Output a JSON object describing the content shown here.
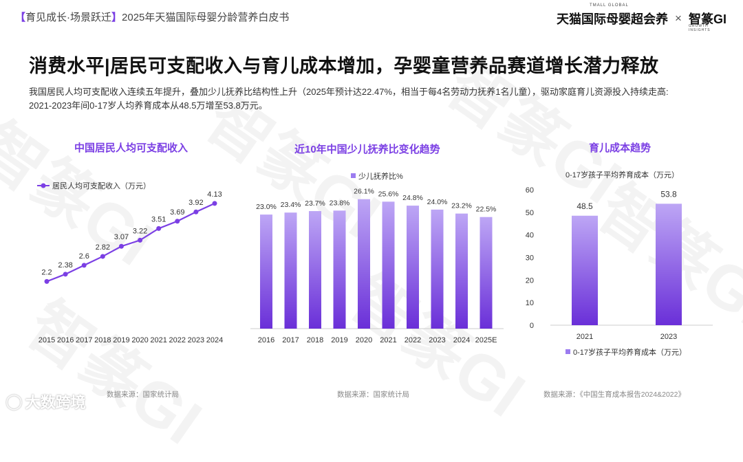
{
  "header": {
    "section_tag": "育见成长·场景跃迁",
    "report_title": "2025年天猫国际母婴分龄营养白皮书",
    "brand_tmall": "天猫国际母婴超会养",
    "brand_tmall_super": "TMALL GLOBAL",
    "brand_times": "×",
    "brand_gi": "智篆GI",
    "brand_gi_sub": "GROWTH INSIGHTS"
  },
  "headline": "消费水平|居民可支配收入与育儿成本增加，孕婴童营养品赛道增长潜力释放",
  "description": {
    "line1": "我国居民人均可支配收入连续五年提升，叠加少儿抚养比结构性上升（2025年预计达22.47%，相当于每4名劳动力抚养1名儿童），驱动家庭育儿资源投入持续走高:",
    "line2": "2021-2023年间0-17岁人均养育成本从48.5万增至53.8万元。"
  },
  "watermark": "智篆GI",
  "footer_logo": "大数跨境",
  "colors": {
    "accent": "#7b3fe4",
    "bar_top": "#b9a0f5",
    "bar_bottom": "#6a2fd8"
  },
  "chart_data": [
    {
      "type": "line",
      "title": "中国居民人均可支配收入",
      "legend": "居民人均可支配收入（万元）",
      "x": [
        "2015",
        "2016",
        "2017",
        "2018",
        "2019",
        "2020",
        "2021",
        "2022",
        "2023",
        "2024"
      ],
      "series": [
        {
          "name": "居民人均可支配收入（万元）",
          "values": [
            2.2,
            2.38,
            2.6,
            2.82,
            3.07,
            3.22,
            3.51,
            3.69,
            3.92,
            4.13
          ]
        }
      ],
      "labels": [
        "2.2",
        "2.38",
        "2.6",
        "2.82",
        "3.07",
        "3.22",
        "3.51",
        "3.69",
        "3.92",
        "4.13"
      ],
      "ylim": [
        1.0,
        4.4
      ],
      "source": "数据来源：国家统计局"
    },
    {
      "type": "bar",
      "title": "近10年中国少儿抚养比变化趋势",
      "legend": "少儿抚养比%",
      "categories": [
        "2016",
        "2017",
        "2018",
        "2019",
        "2020",
        "2021",
        "2022",
        "2023",
        "2024",
        "2025E"
      ],
      "values": [
        23.0,
        23.4,
        23.7,
        23.8,
        26.1,
        25.6,
        24.8,
        24.0,
        23.2,
        22.5
      ],
      "labels": [
        "23.0%",
        "23.4%",
        "23.7%",
        "23.8%",
        "26.1%",
        "25.6%",
        "24.8%",
        "24.0%",
        "23.2%",
        "22.5%"
      ],
      "ylim": [
        0,
        28
      ],
      "source": "数据来源：国家统计局"
    },
    {
      "type": "bar",
      "title": "育儿成本趋势",
      "unit_label": "0-17岁孩子平均养育成本（万元）",
      "legend": "0-17岁孩子平均养育成本（万元）",
      "categories": [
        "2021",
        "2023"
      ],
      "values": [
        48.5,
        53.8
      ],
      "labels": [
        "48.5",
        "53.8"
      ],
      "yticks": [
        "0",
        "10",
        "20",
        "30",
        "40",
        "50",
        "60"
      ],
      "ylim": [
        0,
        60
      ],
      "source": "数据来源：《中国生育成本报告2024&2022》"
    }
  ]
}
